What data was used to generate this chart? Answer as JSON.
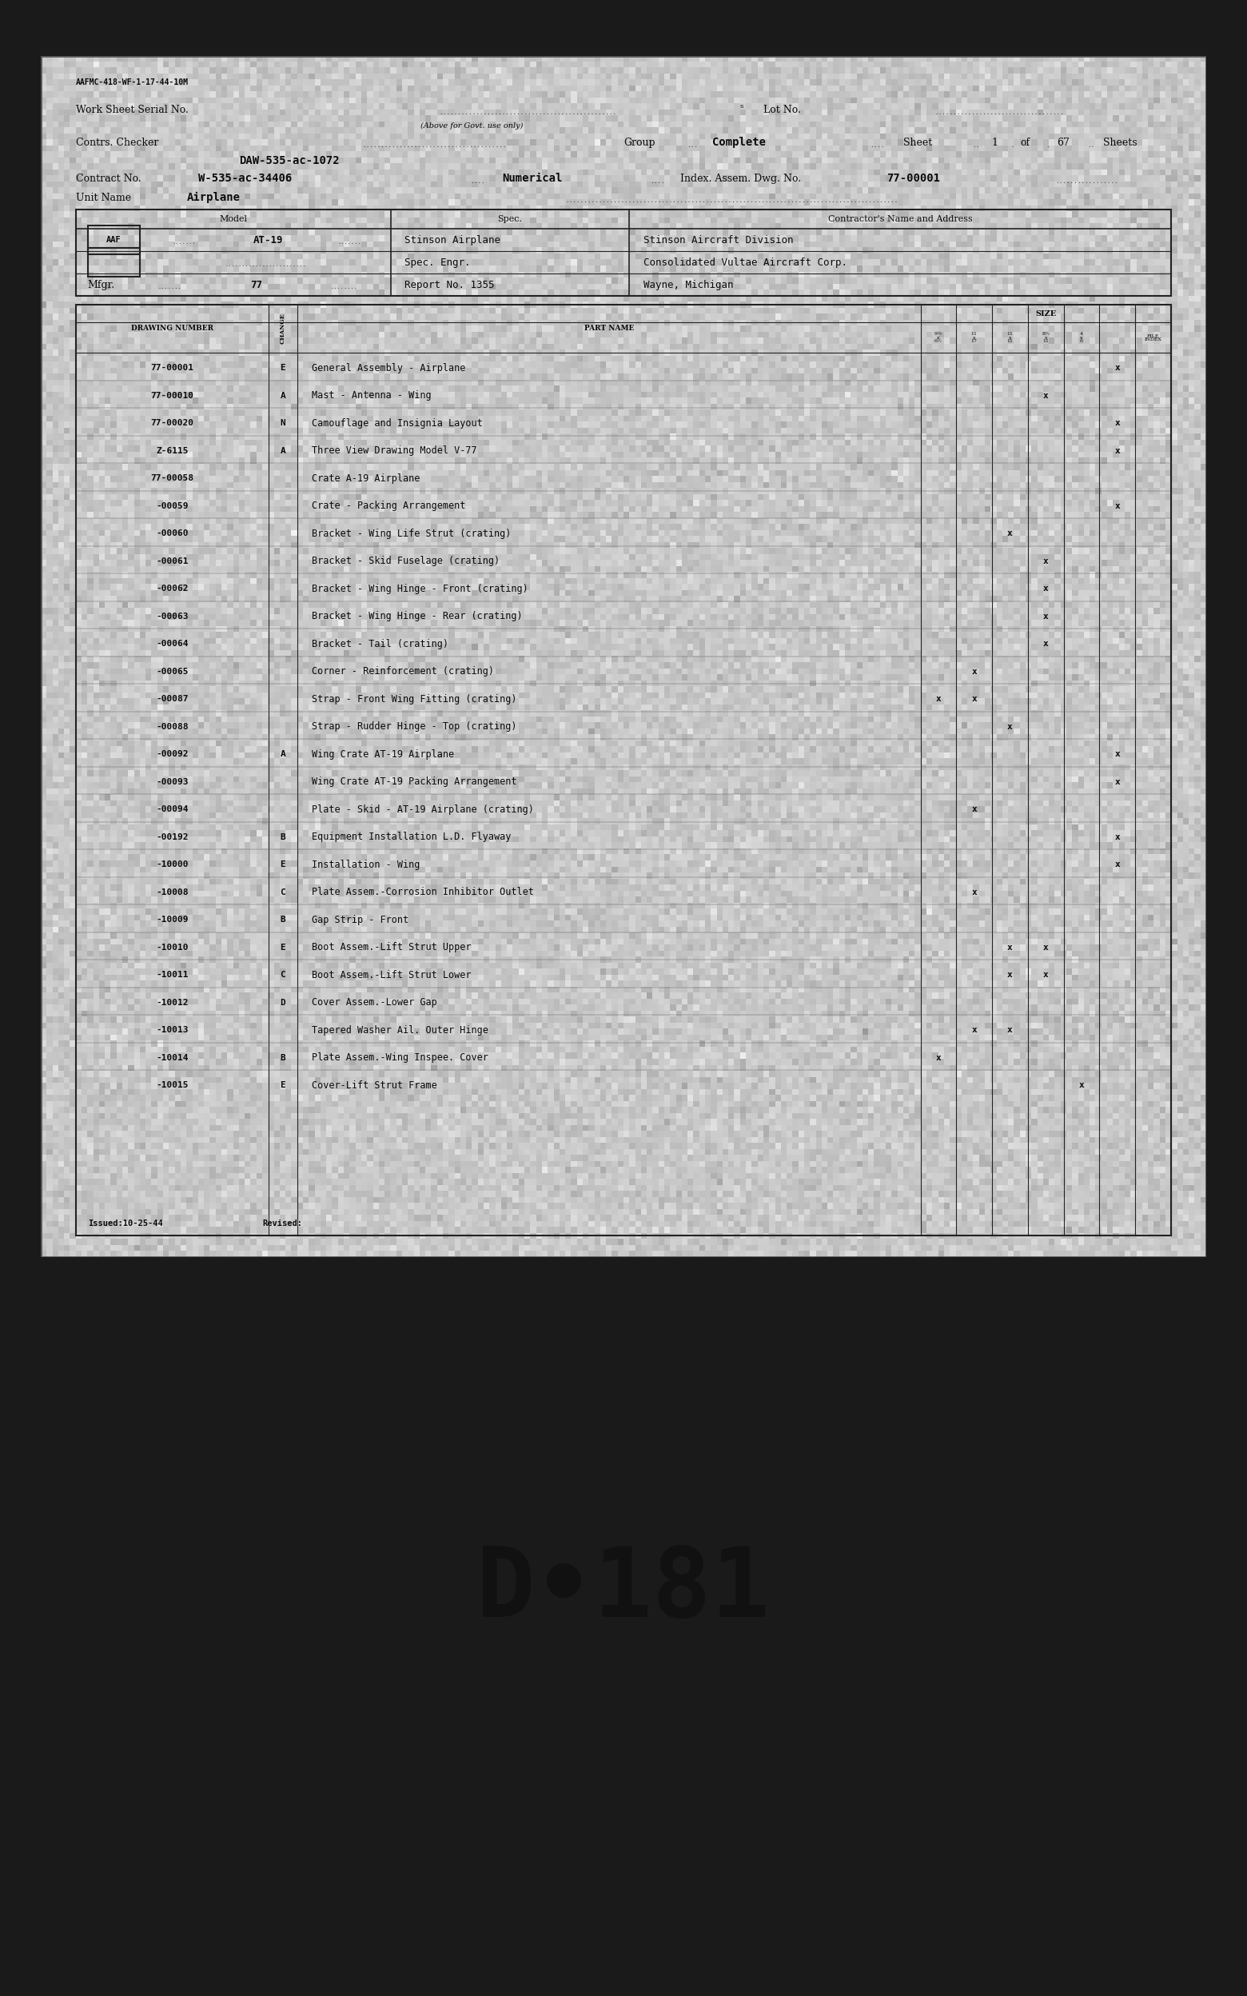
{
  "page_bg": "#1a1a1a",
  "paper_color": "#c8c4bc",
  "paper_edge_color": "#888880",
  "text_color": "#0a0a0a",
  "line_color": "#222222",
  "header_form_num": "AAFMC-418-WF-1-17-44-10M",
  "work_sheet_label": "Work Sheet Serial No.",
  "above_govt": "(Above for Govt. use only)",
  "lot_no_label": "Lot No.",
  "contrs_checker": "Contrs. Checker",
  "group_label": "Group",
  "group_value": "Complete",
  "sheet_label": "Sheet",
  "sheet_num": "1",
  "of_label": "of",
  "sheets_num": "67",
  "sheets_label": "Sheets",
  "daw_line": "DAW-535-ac-1072",
  "contract_no_label": "Contract No.",
  "contract_value": "W-535-ac-34406",
  "numerical_label": "Numerical",
  "index_label": "Index. Assem. Dwg. No.",
  "index_value": "77-00001",
  "unit_name_label": "Unit Name",
  "unit_name_value": "Airplane",
  "model_label": "Model",
  "spec_label": "Spec.",
  "contractors_label": "Contractor's Name and Address",
  "aaf_label": "AAF",
  "model_value": "AT-19",
  "spec1": "Stinson Airplane",
  "contractor1": "Stinson Aircraft Division",
  "spec2": "Spec. Engr.",
  "contractor2": "Consolidated Vultae Aircraft Corp.",
  "mfgr_label": "Mfgr.",
  "mfgr_value": "77",
  "report_label": "Report No. 1355",
  "contractor3": "Wayne, Michigan",
  "col_drawing": "DRAWING NUMBER",
  "col_change": "CHANGE",
  "col_part": "PART NAME",
  "col_size": "SIZE",
  "col_file_index": "FILE INDEX",
  "rows": [
    {
      "num": "77-00001",
      "change": "E",
      "part": "General Assembly - Airplane",
      "sizes": [
        0,
        0,
        0,
        0,
        0,
        1
      ]
    },
    {
      "num": "77-00010",
      "change": "A",
      "part": "Mast - Antenna - Wing",
      "sizes": [
        0,
        0,
        0,
        1,
        0,
        0
      ]
    },
    {
      "num": "77-00020",
      "change": "N",
      "part": "Camouflage and Insignia Layout",
      "sizes": [
        0,
        0,
        0,
        0,
        0,
        1
      ]
    },
    {
      "num": "Z-6115",
      "change": "A",
      "part": "Three View Drawing Model V-77",
      "sizes": [
        0,
        0,
        0,
        0,
        0,
        1
      ]
    },
    {
      "num": "77-00058",
      "change": "",
      "part": "Crate A-19 Airplane",
      "sizes": [
        0,
        0,
        0,
        0,
        0,
        0
      ]
    },
    {
      "num": "-00059",
      "change": "",
      "part": "Crate - Packing Arrangement",
      "sizes": [
        0,
        0,
        0,
        0,
        0,
        1
      ]
    },
    {
      "num": "-00060",
      "change": "",
      "part": "Bracket - Wing Life Strut (crating)",
      "sizes": [
        0,
        0,
        1,
        0,
        0,
        0
      ]
    },
    {
      "num": "-00061",
      "change": "",
      "part": "Bracket - Skid Fuselage (crating)",
      "sizes": [
        0,
        0,
        0,
        1,
        0,
        0
      ]
    },
    {
      "num": "-00062",
      "change": "",
      "part": "Bracket - Wing Hinge - Front (crating)",
      "sizes": [
        0,
        0,
        0,
        1,
        0,
        0
      ]
    },
    {
      "num": "-00063",
      "change": "",
      "part": "Bracket - Wing Hinge - Rear (crating)",
      "sizes": [
        0,
        0,
        0,
        1,
        0,
        0
      ]
    },
    {
      "num": "-00064",
      "change": "",
      "part": "Bracket - Tail (crating)",
      "sizes": [
        0,
        0,
        0,
        1,
        0,
        0
      ]
    },
    {
      "num": "-00065",
      "change": "",
      "part": "Corner - Reinforcement (crating)",
      "sizes": [
        0,
        1,
        0,
        0,
        0,
        0
      ]
    },
    {
      "num": "-00087",
      "change": "",
      "part": "Strap - Front Wing Fitting (crating)",
      "sizes": [
        1,
        1,
        0,
        0,
        0,
        0
      ]
    },
    {
      "num": "-00088",
      "change": "",
      "part": "Strap - Rudder Hinge - Top (crating)",
      "sizes": [
        0,
        0,
        1,
        0,
        0,
        0
      ]
    },
    {
      "num": "-00092",
      "change": "A",
      "part": "Wing Crate AT-19 Airplane",
      "sizes": [
        0,
        0,
        0,
        0,
        0,
        1
      ]
    },
    {
      "num": "-00093",
      "change": "",
      "part": "Wing Crate AT-19 Packing Arrangement",
      "sizes": [
        0,
        0,
        0,
        0,
        0,
        1
      ]
    },
    {
      "num": "-00094",
      "change": "",
      "part": "Plate - Skid - AT-19 Airplane (crating)",
      "sizes": [
        0,
        1,
        0,
        0,
        0,
        0
      ]
    },
    {
      "num": "-00192",
      "change": "B",
      "part": "Equipment Installation L.D. Flyaway",
      "sizes": [
        0,
        0,
        0,
        0,
        0,
        1
      ]
    },
    {
      "num": "-10000",
      "change": "E",
      "part": "Installation - Wing",
      "sizes": [
        0,
        0,
        0,
        0,
        0,
        1
      ]
    },
    {
      "num": "-10008",
      "change": "C",
      "part": "Plate Assem.-Corrosion Inhibitor Outlet",
      "sizes": [
        0,
        1,
        0,
        0,
        0,
        0
      ]
    },
    {
      "num": "-10009",
      "change": "B",
      "part": "Gap Strip - Front",
      "sizes": [
        0,
        0,
        0,
        0,
        0,
        0
      ]
    },
    {
      "num": "-10010",
      "change": "E",
      "part": "Boot Assem.-Lift Strut Upper",
      "sizes": [
        0,
        0,
        1,
        1,
        0,
        0
      ]
    },
    {
      "num": "-10011",
      "change": "C",
      "part": "Boot Assem.-Lift Strut Lower",
      "sizes": [
        0,
        0,
        1,
        1,
        0,
        0
      ]
    },
    {
      "num": "-10012",
      "change": "D",
      "part": "Cover Assem.-Lower Gap",
      "sizes": [
        0,
        0,
        0,
        0,
        0,
        0
      ]
    },
    {
      "num": "-10013",
      "change": "",
      "part": "Tapered Washer Ail. Outer Hinge",
      "sizes": [
        0,
        1,
        1,
        0,
        0,
        0
      ]
    },
    {
      "num": "-10014",
      "change": "B",
      "part": "Plate Assem.-Wing Inspee. Cover",
      "sizes": [
        1,
        0,
        0,
        0,
        0,
        0
      ]
    },
    {
      "num": "-10015",
      "change": "E",
      "part": "Cover-Lift Strut Frame",
      "sizes": [
        0,
        0,
        0,
        0,
        1,
        0
      ]
    }
  ],
  "issued": "Issued:10-25-44",
  "revised": "Revised:",
  "bottom_text": "D•181"
}
